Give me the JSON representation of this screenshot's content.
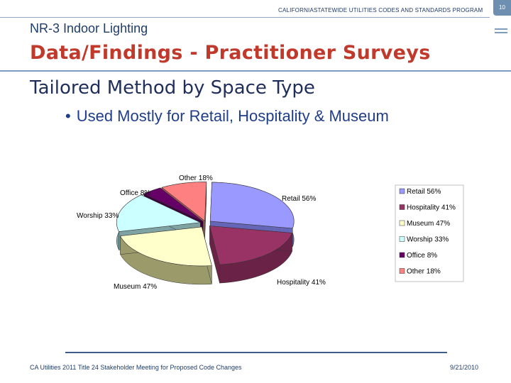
{
  "header": {
    "program": "CALIFORNIASTATEWIDE UTILITIES CODES AND STANDARDS PROGRAM",
    "page_number": "10"
  },
  "slide": {
    "section": "NR-3 Indoor Lighting",
    "title": "Data/Findings - Practitioner Surveys",
    "subtitle": "Tailored Method by Space Type",
    "bullet": "Used Mostly for Retail, Hospitality & Museum"
  },
  "footer": {
    "left": "CA Utilities 2011 Title 24 Stakeholder Meeting for Proposed Code Changes",
    "right": "9/21/2010"
  },
  "chart_data": {
    "type": "pie",
    "style": "3d-exploded",
    "categories": [
      "Retail",
      "Hospitality",
      "Museum",
      "Worship",
      "Office",
      "Other"
    ],
    "values": [
      56,
      41,
      47,
      33,
      8,
      18
    ],
    "unit": "%",
    "labels": [
      "Retail 56%",
      "Hospitality 41%",
      "Museum 47%",
      "Worship 33%",
      "Office 8%",
      "Other 18%"
    ],
    "legend_labels": [
      "Retail 56%",
      "Hospitality 41%",
      "Museum 47%",
      "Worship 33%",
      "Office 8%",
      "Other 18%"
    ],
    "colors": [
      "#9999ff",
      "#993366",
      "#ffffcc",
      "#ccffff",
      "#660066",
      "#ff8080"
    ],
    "side_colors": [
      "#6666b8",
      "#6b2247",
      "#9a9a6a",
      "#7fa3a3",
      "#3d003d",
      "#b35a5a"
    ],
    "legend_placement": "right",
    "title": ""
  }
}
